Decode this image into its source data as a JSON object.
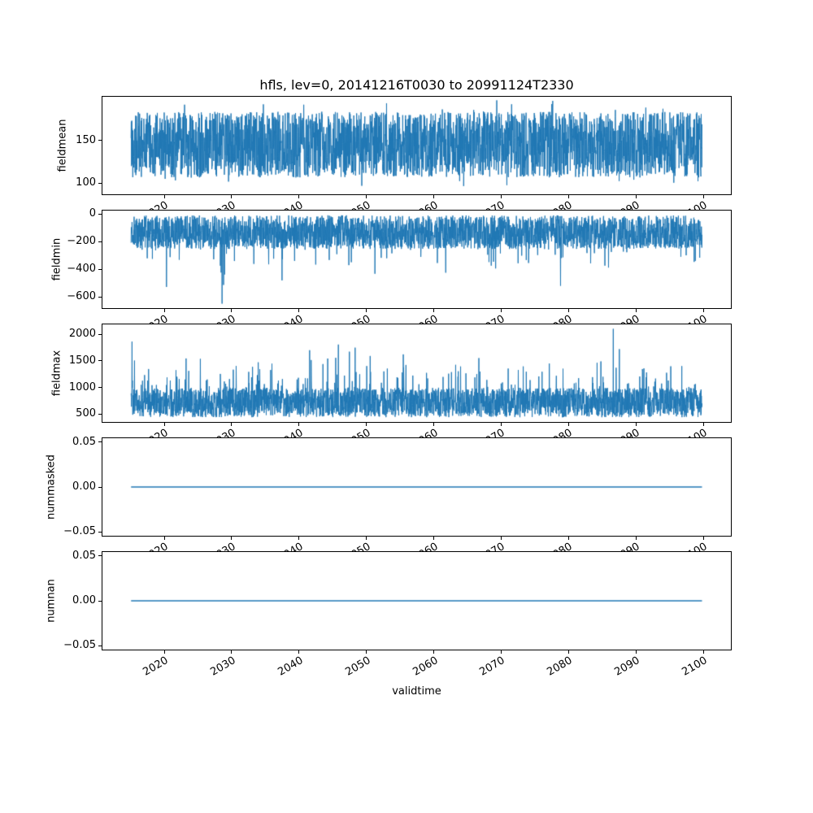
{
  "figure": {
    "title": "hfls, lev=0, 20141216T0030 to 20991124T2330",
    "xlabel": "validtime",
    "line_color": "#1f77b4",
    "x_axis": {
      "lim": [
        2010.7,
        2104.2
      ],
      "data_start": 2014.96,
      "data_end": 2099.9,
      "ticks": [
        {
          "v": 2020,
          "label": "2020"
        },
        {
          "v": 2030,
          "label": "2030"
        },
        {
          "v": 2040,
          "label": "2040"
        },
        {
          "v": 2050,
          "label": "2050"
        },
        {
          "v": 2060,
          "label": "2060"
        },
        {
          "v": 2070,
          "label": "2070"
        },
        {
          "v": 2080,
          "label": "2080"
        },
        {
          "v": 2090,
          "label": "2090"
        },
        {
          "v": 2100,
          "label": "2100"
        }
      ]
    }
  },
  "chart_data": [
    {
      "type": "line",
      "name": "fieldmean",
      "ylabel": "fieldmean",
      "ylim": [
        86,
        202
      ],
      "yticks": [
        {
          "v": 150,
          "label": "150"
        },
        {
          "v": 100,
          "label": "100"
        }
      ],
      "series": {
        "kind": "noise",
        "seed": 42,
        "n": 3000,
        "dense_min": 106,
        "dense_max": 184,
        "spike_prob": 0.1,
        "spike_span": 16,
        "spike_dir": "both",
        "approx_min": 92,
        "approx_max": 199
      }
    },
    {
      "type": "line",
      "name": "fieldmin",
      "ylabel": "fieldmin",
      "ylim": [
        -688,
        31
      ],
      "yticks": [
        {
          "v": 0,
          "label": "0"
        },
        {
          "v": -200,
          "label": "−200"
        },
        {
          "v": -400,
          "label": "−400"
        },
        {
          "v": -600,
          "label": "−600"
        }
      ],
      "series": {
        "kind": "noise",
        "seed": 1337,
        "n": 3000,
        "dense_min": -252,
        "dense_max": -4,
        "spike_prob": 0.06,
        "spike_span": 170,
        "spike_dir": "down",
        "deep_prob": 0.003,
        "deep_span": 410,
        "approx_min": -655,
        "approx_max": -2
      }
    },
    {
      "type": "line",
      "name": "fieldmax",
      "ylabel": "fieldmax",
      "ylim": [
        335,
        2205
      ],
      "yticks": [
        {
          "v": 2000,
          "label": "2000"
        },
        {
          "v": 1500,
          "label": "1500"
        },
        {
          "v": 1000,
          "label": "1000"
        },
        {
          "v": 500,
          "label": "500"
        }
      ],
      "series": {
        "kind": "noise",
        "seed": 2024,
        "n": 3000,
        "dense_min": 425,
        "dense_max": 990,
        "spike_prob": 0.09,
        "spike_span": 560,
        "spike_dir": "up",
        "deep_prob": 0.007,
        "deep_span": 1140,
        "approx_min": 418,
        "approx_max": 2120
      }
    },
    {
      "type": "line",
      "name": "nummasked",
      "ylabel": "nummasked",
      "ylim": [
        -0.055,
        0.055
      ],
      "yticks": [
        {
          "v": 0.05,
          "label": "0.05"
        },
        {
          "v": 0,
          "label": "0.00"
        },
        {
          "v": -0.05,
          "label": "−0.05"
        }
      ],
      "series": {
        "kind": "constant",
        "value": 0
      }
    },
    {
      "type": "line",
      "name": "numnan",
      "ylabel": "numnan",
      "ylim": [
        -0.055,
        0.055
      ],
      "yticks": [
        {
          "v": 0.05,
          "label": "0.05"
        },
        {
          "v": 0,
          "label": "0.00"
        },
        {
          "v": -0.05,
          "label": "−0.05"
        }
      ],
      "series": {
        "kind": "constant",
        "value": 0
      }
    }
  ]
}
